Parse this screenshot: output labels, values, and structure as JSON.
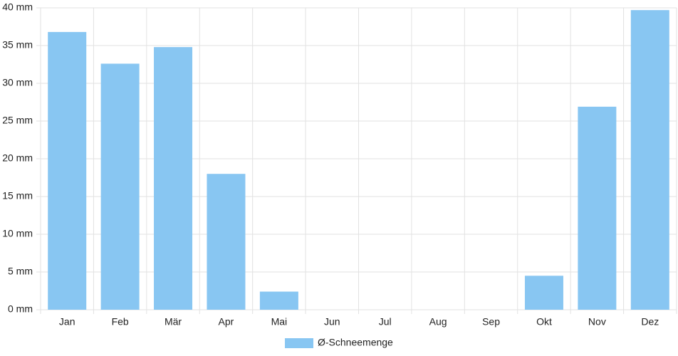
{
  "chart_data": {
    "type": "bar",
    "categories": [
      "Jan",
      "Feb",
      "Mär",
      "Apr",
      "Mai",
      "Jun",
      "Jul",
      "Aug",
      "Sep",
      "Okt",
      "Nov",
      "Dez"
    ],
    "series": [
      {
        "name": "Ø-Schneemenge",
        "color": "#88c6f2",
        "values": [
          36.8,
          32.6,
          34.8,
          18.0,
          2.4,
          0,
          0,
          0,
          0,
          4.5,
          26.9,
          39.7
        ]
      }
    ],
    "ylim": [
      0,
      40
    ],
    "yticks": [
      {
        "value": 0,
        "label": "0 mm"
      },
      {
        "value": 5,
        "label": "5 mm"
      },
      {
        "value": 10,
        "label": "10 mm"
      },
      {
        "value": 15,
        "label": "15 mm"
      },
      {
        "value": 20,
        "label": "20 mm"
      },
      {
        "value": 25,
        "label": "25 mm"
      },
      {
        "value": 30,
        "label": "30 mm"
      },
      {
        "value": 35,
        "label": "35 mm"
      },
      {
        "value": 40,
        "label": "40 mm"
      }
    ],
    "grid": true,
    "legend": "bottom"
  }
}
